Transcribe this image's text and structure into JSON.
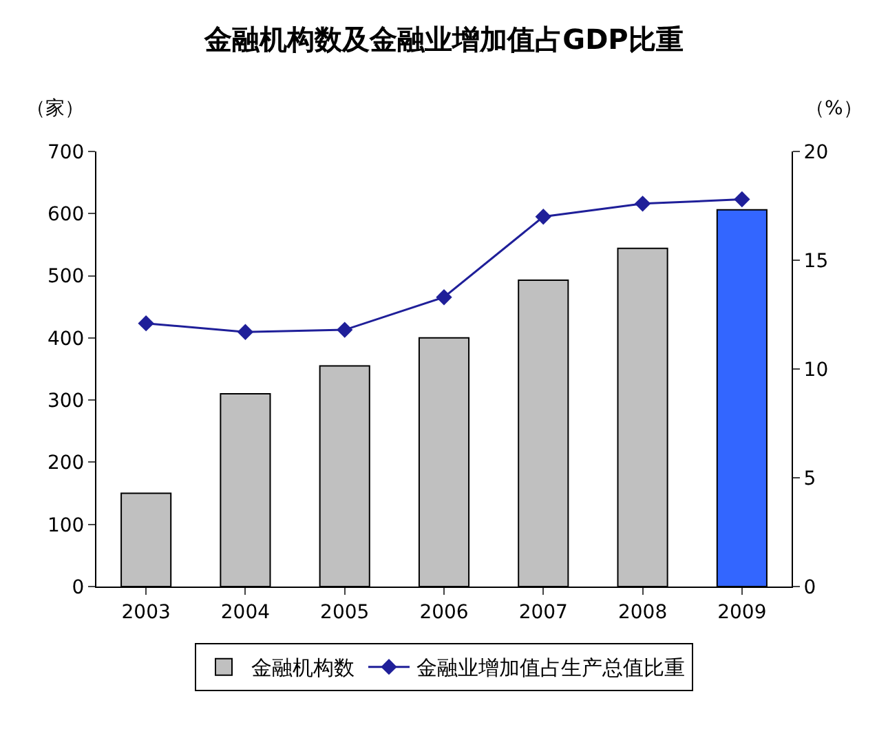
{
  "chart_data": {
    "type": "bar",
    "title": "金融机构数及金融业增加值占GDP比重",
    "ylabel": "（家）",
    "y2label": "（%）",
    "categories": [
      "2003",
      "2004",
      "2005",
      "2006",
      "2007",
      "2008",
      "2009"
    ],
    "series": [
      {
        "name": "金融机构数",
        "color": "#c0c0c0",
        "colors": [
          "#c0c0c0",
          "#c0c0c0",
          "#c0c0c0",
          "#c0c0c0",
          "#c0c0c0",
          "#c0c0c0",
          "#3366ff"
        ],
        "values": [
          150,
          310,
          355,
          400,
          493,
          544,
          606
        ]
      },
      {
        "name": "金融业增加值占生产总值比重",
        "type": "line",
        "axis": "y2",
        "color": "#1f1f99",
        "marker": "diamond",
        "line_style": "solid",
        "values": [
          12.1,
          11.7,
          11.8,
          13.3,
          17.0,
          17.6,
          17.8
        ]
      }
    ],
    "ylim": [
      0,
      700
    ],
    "yticks": [
      0,
      100,
      200,
      300,
      400,
      500,
      600,
      700
    ],
    "y2lim": [
      0,
      20
    ],
    "y2ticks": [
      0,
      5,
      10,
      15,
      20
    ],
    "legend": "bottom"
  }
}
